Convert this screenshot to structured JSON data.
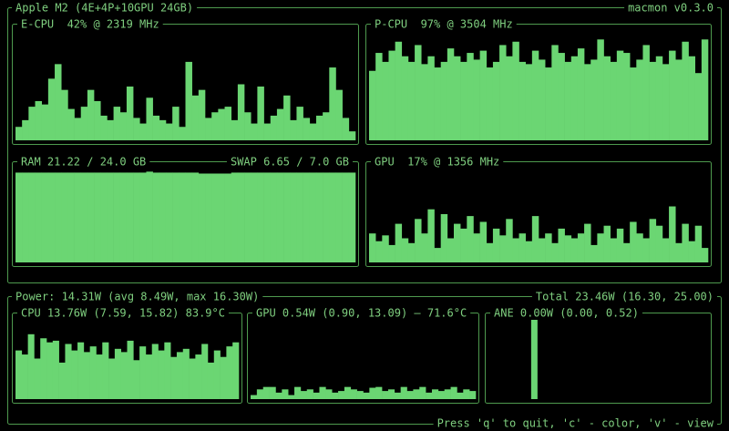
{
  "header": {
    "title": "Apple M2 (4E+4P+10GPU 24GB)",
    "version": "macmon v0.3.0"
  },
  "panels": [
    {
      "title": "E-CPU  42% @ 2319 MHz",
      "ylim": [
        0,
        100
      ],
      "values": [
        12,
        18,
        30,
        35,
        32,
        55,
        68,
        45,
        28,
        20,
        30,
        45,
        35,
        22,
        18,
        30,
        25,
        48,
        20,
        15,
        38,
        22,
        18,
        15,
        30,
        12,
        70,
        40,
        45,
        20,
        25,
        28,
        30,
        18,
        50,
        25,
        15,
        48,
        15,
        22,
        28,
        40,
        18,
        30,
        20,
        15,
        22,
        25,
        65,
        45,
        20,
        8
      ]
    },
    {
      "title": "P-CPU  97% @ 3504 MHz",
      "ylim": [
        0,
        100
      ],
      "values": [
        62,
        78,
        70,
        80,
        88,
        75,
        70,
        85,
        68,
        75,
        65,
        70,
        82,
        75,
        70,
        78,
        72,
        80,
        65,
        70,
        85,
        75,
        88,
        70,
        68,
        80,
        72,
        65,
        85,
        78,
        70,
        75,
        82,
        68,
        72,
        90,
        75,
        70,
        80,
        78,
        65,
        72,
        85,
        70,
        75,
        68,
        80,
        72,
        88,
        75,
        60,
        90
      ]
    },
    {
      "title": "RAM 21.22 / 24.0 GB",
      "title_right": "SWAP 6.65 / 7.0 GB",
      "ylim": [
        0,
        100
      ],
      "values": [
        93,
        93,
        93,
        93,
        93,
        93,
        93,
        93,
        93,
        93,
        93,
        93,
        93,
        93,
        93,
        93,
        93,
        93,
        93,
        93,
        94,
        93,
        93,
        93,
        93,
        93,
        93,
        93,
        92,
        92,
        92,
        92,
        92,
        93,
        93,
        93,
        93,
        93,
        93,
        93,
        93,
        93,
        93,
        93,
        93,
        93,
        93,
        93,
        93,
        93,
        93,
        93
      ]
    },
    {
      "title": "GPU  17% @ 1356 MHz",
      "ylim": [
        0,
        100
      ],
      "values": [
        30,
        22,
        28,
        18,
        40,
        25,
        20,
        45,
        30,
        55,
        15,
        50,
        25,
        40,
        35,
        48,
        30,
        42,
        20,
        35,
        28,
        45,
        25,
        30,
        22,
        48,
        25,
        30,
        20,
        35,
        28,
        25,
        30,
        40,
        18,
        30,
        38,
        25,
        35,
        20,
        42,
        30,
        25,
        45,
        38,
        25,
        58,
        20,
        40,
        22,
        38,
        15
      ]
    }
  ],
  "power": {
    "title": "Power: 14.31W (avg 8.49W, max 16.30W)",
    "total": "Total 23.46W (16.30, 25.00)",
    "panels": [
      {
        "title": "CPU 13.76W (7.59, 15.82) 83.9°C",
        "ylim": [
          0,
          100
        ],
        "values": [
          60,
          55,
          80,
          50,
          75,
          70,
          72,
          45,
          68,
          60,
          70,
          58,
          65,
          55,
          70,
          50,
          62,
          58,
          72,
          48,
          65,
          55,
          68,
          60,
          70,
          52,
          58,
          62,
          50,
          55,
          68,
          45,
          60,
          52,
          65,
          70
        ]
      },
      {
        "title": "GPU 0.54W (0.90, 13.09) — 71.6°C",
        "ylim": [
          0,
          100
        ],
        "values": [
          5,
          12,
          15,
          15,
          8,
          12,
          5,
          15,
          10,
          12,
          8,
          15,
          12,
          8,
          10,
          15,
          12,
          10,
          8,
          14,
          15,
          10,
          12,
          8,
          15,
          10,
          12,
          15,
          8,
          12,
          10,
          12,
          15,
          8,
          12,
          10
        ]
      },
      {
        "title": "ANE 0.00W (0.00, 0.52)",
        "ylim": [
          0,
          100
        ],
        "values": [
          0,
          0,
          0,
          0,
          0,
          0,
          0,
          100,
          0,
          0,
          0,
          0,
          0,
          0,
          0,
          0,
          0,
          0,
          0,
          0,
          0,
          0,
          0,
          0,
          0,
          0,
          0,
          0,
          0,
          0,
          0,
          0,
          0,
          0,
          0,
          0
        ]
      }
    ]
  },
  "footer": "Press 'q' to quit, 'c' - color, 'v' - view"
}
